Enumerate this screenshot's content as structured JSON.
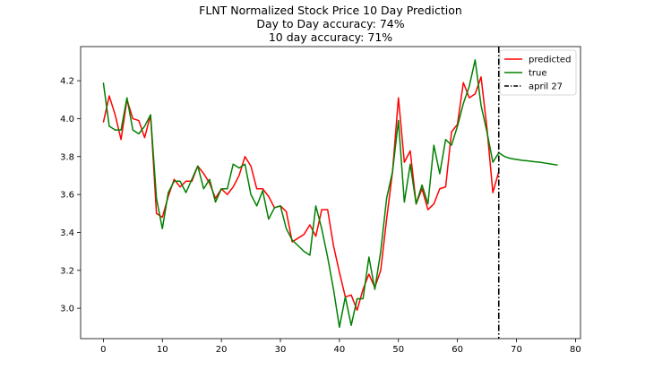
{
  "chart_data": {
    "type": "line",
    "title": [
      "FLNT Normalized Stock Price 10 Day Prediction",
      "Day to Day accuracy: 74%",
      "10 day accuracy: 71%"
    ],
    "xlabel": "",
    "ylabel": "",
    "xlim": [
      -3.85,
      80.85
    ],
    "ylim": [
      2.84,
      4.38
    ],
    "xticks": [
      0,
      10,
      20,
      30,
      40,
      50,
      60,
      70,
      80
    ],
    "yticks": [
      3.0,
      3.2,
      3.4,
      3.6,
      3.8,
      4.0,
      4.2
    ],
    "grid": false,
    "legend_position": "top-right",
    "vline": {
      "x": 67,
      "label": "april 27",
      "color": "#000000",
      "style": "dashdot"
    },
    "series": [
      {
        "name": "predicted",
        "color": "#ff0000",
        "x": [
          0,
          1,
          2,
          3,
          4,
          5,
          6,
          7,
          8,
          9,
          10,
          11,
          12,
          13,
          14,
          15,
          16,
          17,
          18,
          19,
          20,
          21,
          22,
          23,
          24,
          25,
          26,
          27,
          28,
          29,
          30,
          31,
          32,
          33,
          34,
          35,
          36,
          37,
          38,
          39,
          40,
          41,
          42,
          43,
          44,
          45,
          46,
          47,
          48,
          49,
          50,
          51,
          52,
          53,
          54,
          55,
          56,
          57,
          58,
          59,
          60,
          61,
          62,
          63,
          64,
          65,
          66,
          67
        ],
        "y": [
          3.98,
          4.12,
          4.02,
          3.89,
          4.1,
          4.0,
          3.99,
          3.9,
          4.02,
          3.5,
          3.48,
          3.59,
          3.68,
          3.64,
          3.67,
          3.67,
          3.75,
          3.71,
          3.66,
          3.58,
          3.63,
          3.6,
          3.64,
          3.7,
          3.8,
          3.75,
          3.63,
          3.63,
          3.59,
          3.53,
          3.54,
          3.51,
          3.35,
          3.37,
          3.39,
          3.44,
          3.38,
          3.52,
          3.52,
          3.33,
          3.19,
          3.06,
          3.07,
          2.99,
          3.1,
          3.18,
          3.11,
          3.2,
          3.47,
          3.72,
          4.11,
          3.77,
          3.83,
          3.55,
          3.63,
          3.52,
          3.55,
          3.63,
          3.64,
          3.93,
          3.97,
          4.19,
          4.11,
          4.13,
          4.22,
          3.95,
          3.61,
          3.72
        ]
      },
      {
        "name": "true",
        "color": "#008000",
        "x": [
          0,
          1,
          2,
          3,
          4,
          5,
          6,
          7,
          8,
          9,
          10,
          11,
          12,
          13,
          14,
          15,
          16,
          17,
          18,
          19,
          20,
          21,
          22,
          23,
          24,
          25,
          26,
          27,
          28,
          29,
          30,
          31,
          32,
          33,
          34,
          35,
          36,
          37,
          38,
          39,
          40,
          41,
          42,
          43,
          44,
          45,
          46,
          47,
          48,
          49,
          50,
          51,
          52,
          53,
          54,
          55,
          56,
          57,
          58,
          59,
          60,
          61,
          62,
          63,
          64,
          65,
          66,
          67,
          68,
          69,
          70,
          71,
          72,
          73,
          74,
          75,
          76,
          77
        ],
        "y": [
          4.19,
          3.96,
          3.94,
          3.94,
          4.11,
          3.94,
          3.92,
          3.96,
          4.02,
          3.58,
          3.42,
          3.61,
          3.67,
          3.67,
          3.61,
          3.68,
          3.75,
          3.63,
          3.68,
          3.56,
          3.63,
          3.63,
          3.76,
          3.74,
          3.76,
          3.6,
          3.54,
          3.62,
          3.47,
          3.53,
          3.54,
          3.42,
          3.36,
          3.33,
          3.3,
          3.28,
          3.54,
          3.42,
          3.27,
          3.1,
          2.9,
          3.06,
          2.91,
          3.05,
          3.05,
          3.27,
          3.1,
          3.3,
          3.58,
          3.72,
          3.99,
          3.56,
          3.76,
          3.55,
          3.65,
          3.55,
          3.86,
          3.71,
          3.89,
          3.86,
          3.96,
          4.08,
          4.17,
          4.31,
          4.07,
          3.93,
          3.77,
          3.82,
          3.8,
          3.79,
          3.785,
          3.78,
          3.777,
          3.773,
          3.77,
          3.765,
          3.76,
          3.755
        ]
      }
    ]
  }
}
